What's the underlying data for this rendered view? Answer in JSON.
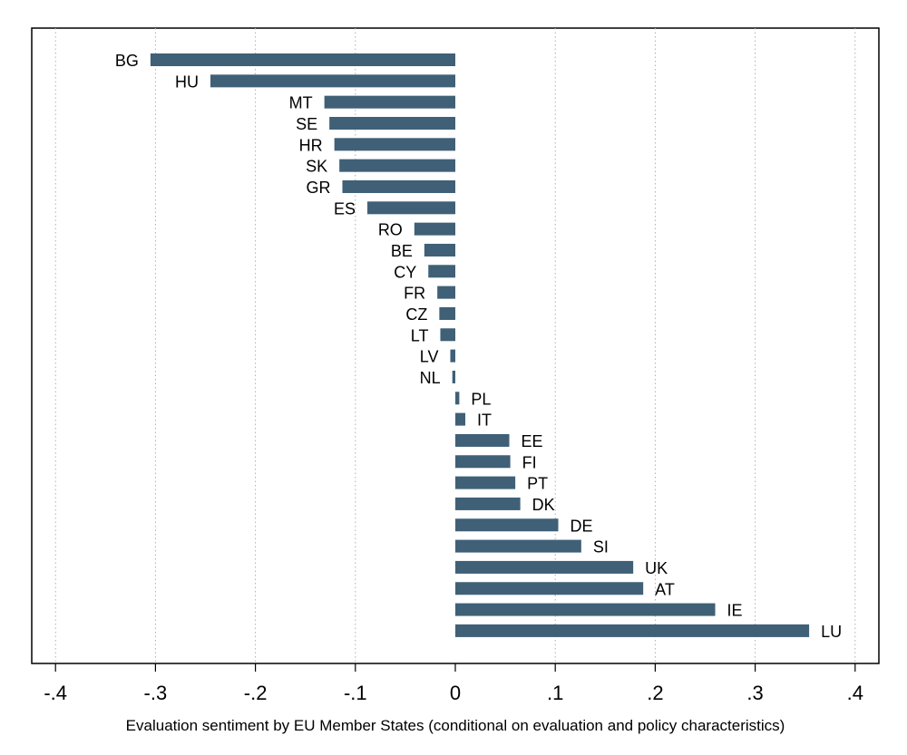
{
  "chart_data": {
    "type": "bar",
    "orientation": "horizontal",
    "title": "",
    "xlabel": "Evaluation sentiment by EU Member States (conditional on evaluation and policy characteristics)",
    "ylabel": "",
    "xlim": [
      -0.4,
      0.4
    ],
    "xticks": [
      -0.4,
      -0.3,
      -0.2,
      -0.1,
      0,
      0.1,
      0.2,
      0.3,
      0.4
    ],
    "xtick_labels": [
      "-.4",
      "-.3",
      "-.2",
      "-.1",
      "0",
      ".1",
      ".2",
      ".3",
      ".4"
    ],
    "grid": "vertical dotted",
    "bar_color": "#3f6077",
    "categories": [
      "BG",
      "HU",
      "MT",
      "SE",
      "HR",
      "SK",
      "GR",
      "ES",
      "RO",
      "BE",
      "CY",
      "FR",
      "CZ",
      "LT",
      "LV",
      "NL",
      "PL",
      "IT",
      "EE",
      "FI",
      "PT",
      "DK",
      "DE",
      "SI",
      "UK",
      "AT",
      "IE",
      "LU"
    ],
    "values": [
      -0.305,
      -0.245,
      -0.131,
      -0.126,
      -0.121,
      -0.116,
      -0.113,
      -0.088,
      -0.041,
      -0.031,
      -0.027,
      -0.018,
      -0.016,
      -0.015,
      -0.005,
      -0.003,
      0.004,
      0.01,
      0.054,
      0.055,
      0.06,
      0.065,
      0.103,
      0.126,
      0.178,
      0.188,
      0.26,
      0.354
    ]
  }
}
